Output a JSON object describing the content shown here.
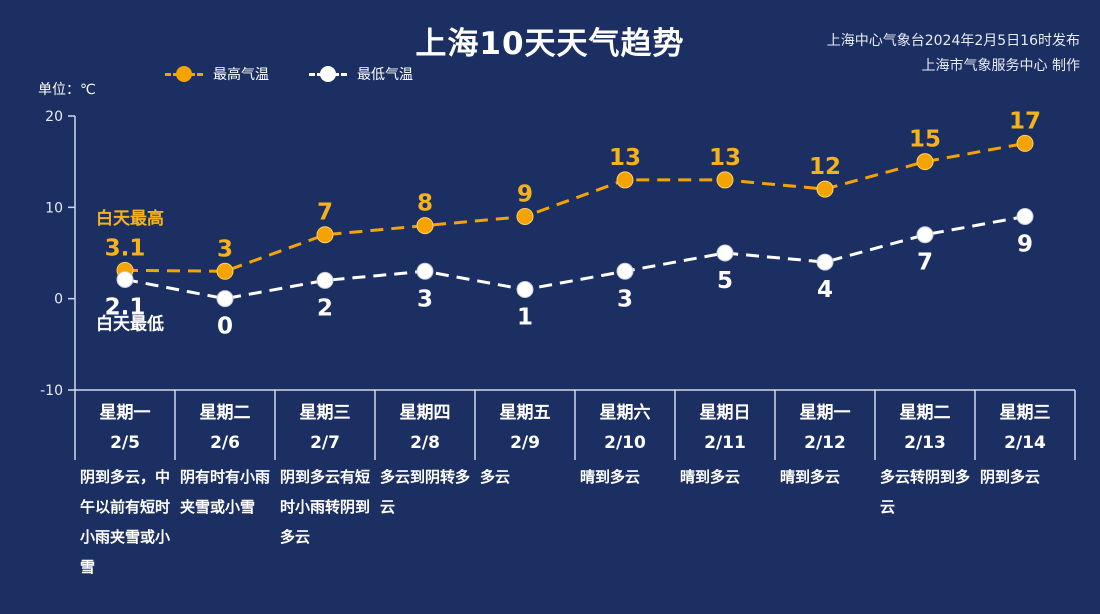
{
  "title": "上海10天天气趋势",
  "source_line1": "上海中心气象台2024年2月5日16时发布",
  "source_line2": "上海市气象服务中心 制作",
  "unit_label": "单位：℃",
  "colors": {
    "background": "#1c2f63",
    "high": "#f5a300",
    "high_label": "#f6b21b",
    "low": "#ffffff",
    "axis": "#cfd8ee"
  },
  "chart_data": {
    "type": "line",
    "ylim": [
      -10,
      20
    ],
    "yticks": [
      "20",
      "10",
      "0",
      "-10"
    ],
    "grid": false,
    "legend_position": "top",
    "categories": [
      "星期一 2/5",
      "星期二 2/6",
      "星期三 2/7",
      "星期四 2/8",
      "星期五 2/9",
      "星期六 2/10",
      "星期日 2/11",
      "星期一 2/12",
      "星期二 2/13",
      "星期三 2/14"
    ],
    "series": [
      {
        "name": "最高气温",
        "values": [
          3.1,
          3,
          7,
          8,
          9,
          13,
          13,
          12,
          15,
          17
        ],
        "labels": [
          "3.1",
          "3",
          "7",
          "8",
          "9",
          "13",
          "13",
          "12",
          "15",
          "17"
        ]
      },
      {
        "name": "最低气温",
        "values": [
          2.1,
          0,
          2,
          3,
          1,
          3,
          5,
          4,
          7,
          9
        ],
        "labels": [
          "2.1",
          "0",
          "2",
          "3",
          "1",
          "3",
          "5",
          "4",
          "7",
          "9"
        ]
      }
    ],
    "annotations": {
      "high": "白天最高",
      "low": "白天最低"
    }
  },
  "days": [
    {
      "weekday": "星期一",
      "date": "2/5",
      "weather": "阴到多云，中午以前有短时小雨夹雪或小雪"
    },
    {
      "weekday": "星期二",
      "date": "2/6",
      "weather": "阴有时有小雨夹雪或小雪"
    },
    {
      "weekday": "星期三",
      "date": "2/7",
      "weather": "阴到多云有短时小雨转阴到多云"
    },
    {
      "weekday": "星期四",
      "date": "2/8",
      "weather": "多云到阴转多云"
    },
    {
      "weekday": "星期五",
      "date": "2/9",
      "weather": "多云"
    },
    {
      "weekday": "星期六",
      "date": "2/10",
      "weather": "晴到多云"
    },
    {
      "weekday": "星期日",
      "date": "2/11",
      "weather": "晴到多云"
    },
    {
      "weekday": "星期一",
      "date": "2/12",
      "weather": "晴到多云"
    },
    {
      "weekday": "星期二",
      "date": "2/13",
      "weather": "多云转阴到多云"
    },
    {
      "weekday": "星期三",
      "date": "2/14",
      "weather": "阴到多云"
    }
  ]
}
